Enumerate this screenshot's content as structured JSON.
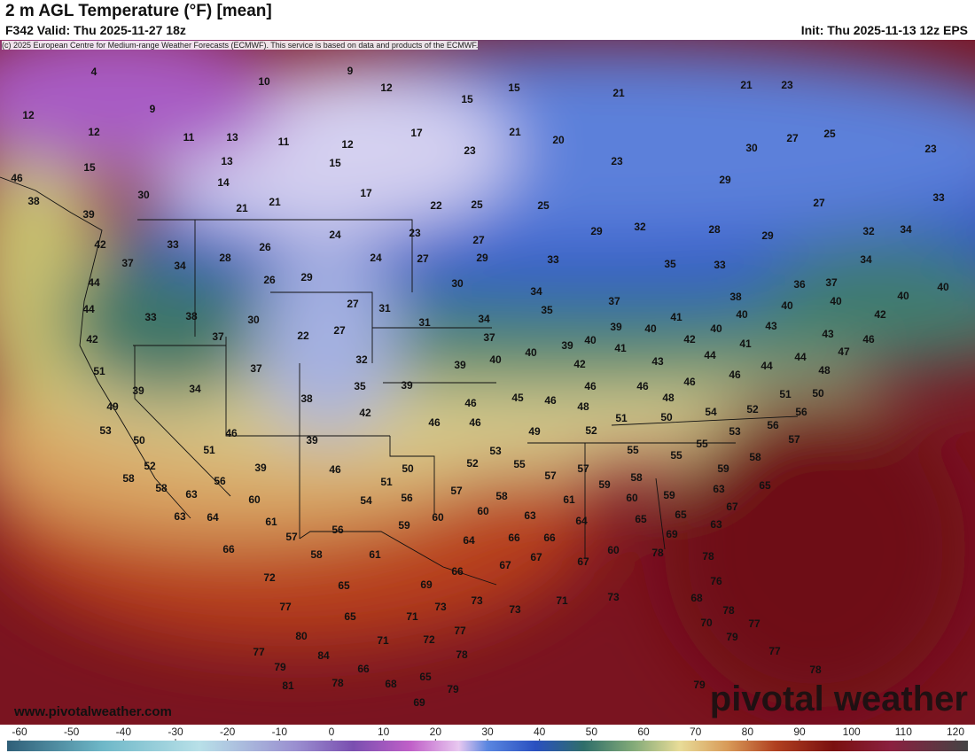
{
  "header": {
    "title": "2 m AGL Temperature (°F) [mean]",
    "valid": "F342 Valid: Thu 2025-11-27 18z",
    "init": "Init: Thu 2025-11-13 12z EPS",
    "credit": "(c) 2025 European Centre for Medium-range Weather Forecasts (ECMWF). This service is based on data and products of the ECMWF."
  },
  "map": {
    "labels": [
      4,
      9,
      10,
      12,
      15,
      12,
      9,
      12,
      11,
      13,
      11,
      12,
      15,
      17,
      21,
      20,
      21,
      21,
      23,
      27,
      25,
      23,
      30,
      23,
      23,
      29,
      15,
      13,
      15,
      46,
      30,
      14,
      17,
      38,
      39,
      21,
      21,
      22,
      25,
      25,
      29,
      32,
      28,
      29,
      27,
      32,
      34,
      33,
      42,
      33,
      26,
      24,
      23,
      27,
      37,
      34,
      28,
      24,
      27,
      29,
      33,
      35,
      33,
      34,
      44,
      26,
      29,
      30,
      34,
      36,
      37,
      40,
      40,
      44,
      33,
      38,
      30,
      27,
      31,
      35,
      37,
      38,
      40,
      40,
      42,
      40,
      42,
      37,
      22,
      27,
      31,
      34,
      37,
      39,
      40,
      41,
      40,
      43,
      43,
      46,
      39,
      40,
      41,
      42,
      41,
      51,
      37,
      32,
      39,
      40,
      40,
      42,
      43,
      44,
      44,
      44,
      48,
      47,
      39,
      34,
      35,
      39,
      46,
      46,
      46,
      46,
      49,
      38,
      42,
      46,
      45,
      46,
      48,
      48,
      51,
      50,
      56,
      53,
      46,
      46,
      46,
      51,
      50,
      54,
      52,
      50,
      51,
      39,
      49,
      52,
      53,
      56,
      57,
      52,
      39,
      46,
      50,
      52,
      53,
      55,
      55,
      55,
      55,
      59,
      58,
      58,
      58,
      56,
      51,
      57,
      57,
      56,
      57,
      58,
      59,
      58,
      59,
      63,
      65,
      63,
      60,
      54,
      60,
      60,
      61,
      60,
      63,
      64,
      61,
      63,
      64,
      65,
      65,
      67,
      63,
      59,
      56,
      57,
      64,
      66,
      66,
      69,
      66,
      58,
      61,
      60,
      78,
      78,
      66,
      67,
      67,
      67,
      72,
      65,
      69,
      76,
      73,
      77,
      73,
      73,
      71,
      73,
      68,
      78,
      65,
      71,
      77,
      80,
      71,
      72,
      70,
      79,
      77,
      77,
      84,
      78,
      77,
      79,
      66,
      65,
      78,
      81,
      78,
      68,
      79,
      79,
      69
    ]
  },
  "legend": {
    "ticks": [
      -60,
      -50,
      -40,
      -30,
      -20,
      -10,
      0,
      10,
      20,
      30,
      40,
      50,
      60,
      70,
      80,
      90,
      100,
      110,
      120
    ]
  },
  "footer": {
    "url": "www.pivotalweather.com",
    "logo": "pivotal weather"
  }
}
